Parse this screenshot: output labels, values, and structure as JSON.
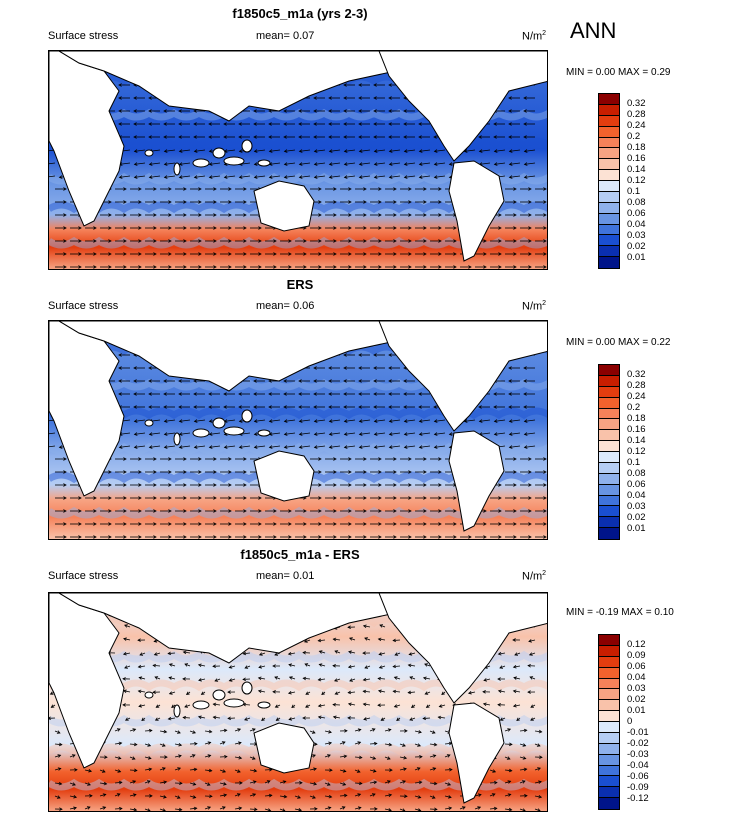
{
  "season": "ANN",
  "panels": [
    {
      "title": "f1850c5_m1a (yrs 2-3)",
      "variable": "Surface stress",
      "mean_text": "mean=  0.07",
      "units": "N/m",
      "units_exp": "2",
      "minmax": "MIN =  0.00 MAX =  0.29",
      "levels": [
        "0.32",
        "0.28",
        "0.24",
        "0.2",
        "0.18",
        "0.16",
        "0.14",
        "0.12",
        "0.1",
        "0.08",
        "0.06",
        "0.04",
        "0.03",
        "0.02",
        "0.01"
      ],
      "colors": [
        "#8b0000",
        "#c81e00",
        "#e33d0f",
        "#f2622d",
        "#f5825a",
        "#f7a383",
        "#f9c2aa",
        "#fce2d4",
        "#dce9fb",
        "#b5cdf4",
        "#8fb1ec",
        "#6894e3",
        "#3f73db",
        "#1a4fd1",
        "#0a2fb0",
        "#00148a"
      ]
    },
    {
      "title": "ERS",
      "variable": "Surface stress",
      "mean_text": "mean=  0.06",
      "units": "N/m",
      "units_exp": "2",
      "minmax": "MIN =  0.00 MAX =  0.22",
      "levels": [
        "0.32",
        "0.28",
        "0.24",
        "0.2",
        "0.18",
        "0.16",
        "0.14",
        "0.12",
        "0.1",
        "0.08",
        "0.06",
        "0.04",
        "0.03",
        "0.02",
        "0.01"
      ],
      "colors": [
        "#8b0000",
        "#c81e00",
        "#e33d0f",
        "#f2622d",
        "#f5825a",
        "#f7a383",
        "#f9c2aa",
        "#fce2d4",
        "#dce9fb",
        "#b5cdf4",
        "#8fb1ec",
        "#6894e3",
        "#3f73db",
        "#1a4fd1",
        "#0a2fb0",
        "#00148a"
      ]
    },
    {
      "title": "f1850c5_m1a - ERS",
      "variable": "Surface stress",
      "mean_text": "mean=  0.01",
      "units": "N/m",
      "units_exp": "2",
      "minmax": "MIN = -0.19 MAX =  0.10",
      "levels": [
        "0.12",
        "0.09",
        "0.06",
        "0.04",
        "0.03",
        "0.02",
        "0.01",
        "0",
        "-0.01",
        "-0.02",
        "-0.03",
        "-0.04",
        "-0.06",
        "-0.09",
        "-0.12"
      ],
      "colors": [
        "#8b0000",
        "#c81e00",
        "#e33d0f",
        "#f2622d",
        "#f5825a",
        "#f7a383",
        "#f9c2aa",
        "#fce2d4",
        "#dce9fb",
        "#b5cdf4",
        "#8fb1ec",
        "#6894e3",
        "#3f73db",
        "#1a4fd1",
        "#0a2fb0",
        "#00148a"
      ]
    }
  ]
}
